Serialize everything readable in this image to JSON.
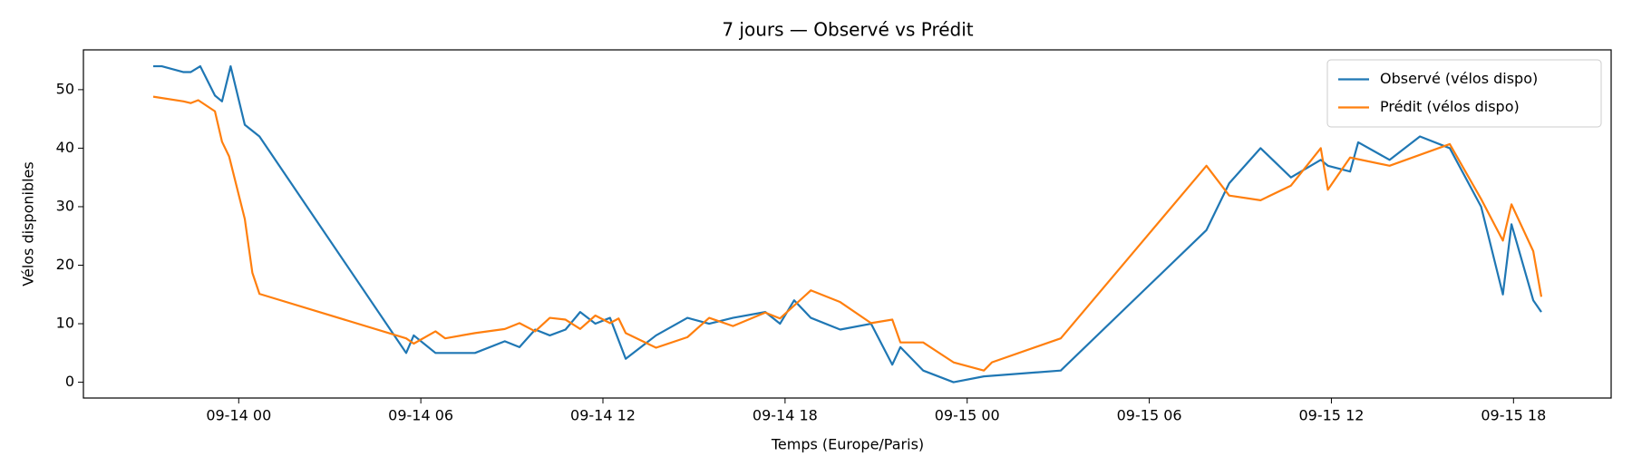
{
  "chart_data": {
    "type": "line",
    "title": "7 jours — Observé vs Prédit",
    "xlabel": "Temps (Europe/Paris)",
    "ylabel": "Vélos disponibles",
    "xlim": [
      "09-13 18:53",
      "09-15 21:13"
    ],
    "xticks": [
      "09-14 00",
      "09-14 06",
      "09-14 12",
      "09-14 18",
      "09-15 00",
      "09-15 06",
      "09-15 12",
      "09-15 18"
    ],
    "ylim": [
      -2.7,
      56.8
    ],
    "yticks": [
      0,
      10,
      20,
      30,
      40,
      50
    ],
    "legend": "upper right",
    "series": [
      {
        "name": "Observé (vélos dispo)",
        "color": "#1f77b4",
        "x": [
          "09-13 21:11",
          "09-13 21:28",
          "09-13 22:11",
          "09-13 22:25",
          "09-13 22:44",
          "09-13 23:13",
          "09-13 23:27",
          "09-13 23:44",
          "09-14 00:12",
          "09-14 00:41",
          "09-14 05:31",
          "09-14 05:46",
          "09-14 06:29",
          "09-14 07:47",
          "09-14 08:46",
          "09-14 09:15",
          "09-14 09:46",
          "09-14 10:15",
          "09-14 10:46",
          "09-14 11:15",
          "09-14 11:45",
          "09-14 12:14",
          "09-14 12:45",
          "09-14 13:45",
          "09-14 14:47",
          "09-14 15:30",
          "09-14 16:17",
          "09-14 17:21",
          "09-14 17:50",
          "09-14 18:18",
          "09-14 18:51",
          "09-14 19:49",
          "09-14 20:50",
          "09-14 21:32",
          "09-14 21:48",
          "09-14 22:33",
          "09-14 23:33",
          "09-15 00:33",
          "09-15 03:05",
          "09-15 07:53",
          "09-15 08:38",
          "09-15 09:40",
          "09-15 10:40",
          "09-15 11:39",
          "09-15 11:53",
          "09-15 12:37",
          "09-15 12:53",
          "09-15 13:55",
          "09-15 14:55",
          "09-15 15:54",
          "09-15 16:56",
          "09-15 17:39",
          "09-15 17:56",
          "09-15 18:39",
          "09-15 18:55"
        ],
        "values": [
          54,
          54,
          53,
          53,
          54,
          49,
          48,
          54,
          44,
          42,
          5,
          8,
          5,
          5,
          7,
          6,
          9,
          8,
          9,
          12,
          10,
          11,
          4,
          8,
          11,
          10,
          11,
          12,
          10,
          14,
          11,
          9,
          10,
          3,
          6,
          2,
          0,
          1,
          2,
          26,
          34,
          40,
          35,
          38,
          37,
          36,
          41,
          38,
          42,
          40,
          30,
          15,
          27,
          14,
          12
        ]
      },
      {
        "name": "Prédit (vélos dispo)",
        "color": "#ff7f0e",
        "x": [
          "09-13 21:11",
          "09-13 22:11",
          "09-13 22:25",
          "09-13 22:40",
          "09-13 23:13",
          "09-13 23:27",
          "09-13 23:41",
          "09-14 00:12",
          "09-14 00:27",
          "09-14 00:41",
          "09-14 05:31",
          "09-14 05:46",
          "09-14 06:29",
          "09-14 06:48",
          "09-14 07:47",
          "09-14 08:46",
          "09-14 09:15",
          "09-14 09:46",
          "09-14 10:15",
          "09-14 10:46",
          "09-14 11:15",
          "09-14 11:45",
          "09-14 12:14",
          "09-14 12:31",
          "09-14 12:45",
          "09-14 13:45",
          "09-14 14:47",
          "09-14 15:30",
          "09-14 16:17",
          "09-14 17:21",
          "09-14 17:50",
          "09-14 18:51",
          "09-14 19:49",
          "09-14 20:50",
          "09-14 21:32",
          "09-14 21:48",
          "09-14 22:33",
          "09-14 23:33",
          "09-15 00:33",
          "09-15 00:49",
          "09-15 03:05",
          "09-15 07:53",
          "09-15 08:38",
          "09-15 09:40",
          "09-15 10:40",
          "09-15 11:39",
          "09-15 11:53",
          "09-15 12:37",
          "09-15 13:55",
          "09-15 15:54",
          "09-15 16:56",
          "09-15 17:39",
          "09-15 17:56",
          "09-15 18:39",
          "09-15 18:55"
        ],
        "values": [
          48.8,
          48,
          47.7,
          48.2,
          46.3,
          41.1,
          38.6,
          27.9,
          18.7,
          15.1,
          7.5,
          6.6,
          8.7,
          7.5,
          8.4,
          9.1,
          10.1,
          8.7,
          11,
          10.7,
          9.1,
          11.4,
          10.1,
          10.9,
          8.4,
          5.9,
          7.7,
          11,
          9.6,
          11.9,
          10.9,
          15.7,
          13.7,
          10.1,
          10.7,
          6.8,
          6.8,
          3.4,
          2,
          3.4,
          7.5,
          37,
          31.9,
          31.1,
          33.6,
          40,
          32.9,
          38.4,
          37,
          40.7,
          31.3,
          24.2,
          30.4,
          22.4,
          14.6
        ]
      }
    ]
  }
}
